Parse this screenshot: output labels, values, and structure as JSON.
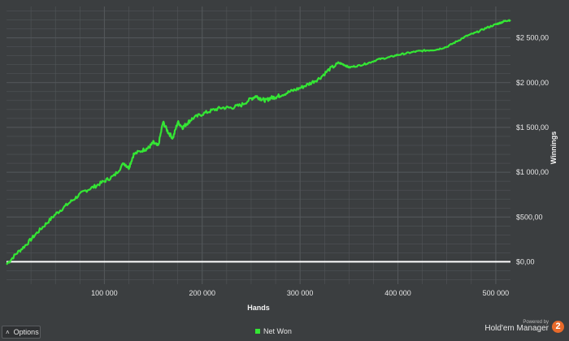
{
  "chart_data": {
    "type": "line",
    "xlabel": "Hands",
    "ylabel": "Winnings",
    "xlim": [
      0,
      515000
    ],
    "ylim": [
      -250,
      2850
    ],
    "x_ticks": [
      {
        "value": 100000,
        "label": "100 000"
      },
      {
        "value": 200000,
        "label": "200 000"
      },
      {
        "value": 300000,
        "label": "300 000"
      },
      {
        "value": 400000,
        "label": "400 000"
      },
      {
        "value": 500000,
        "label": "500 000"
      }
    ],
    "y_ticks": [
      {
        "value": 0,
        "label": "$0,00"
      },
      {
        "value": 500,
        "label": "$500,00"
      },
      {
        "value": 1000,
        "label": "$1 000,00"
      },
      {
        "value": 1500,
        "label": "$1 500,00"
      },
      {
        "value": 2000,
        "label": "$2 000,00"
      },
      {
        "value": 2500,
        "label": "$2 500,00"
      }
    ],
    "grid": true,
    "legend_position": "bottom-center",
    "colors": {
      "background": "#3b3e40",
      "grid": "#55595c",
      "series": "#34e634",
      "zero_line": "#ffffff"
    },
    "series": [
      {
        "name": "Net Won",
        "x": [
          0,
          10000,
          20000,
          30000,
          40000,
          50000,
          60000,
          70000,
          80000,
          90000,
          100000,
          110000,
          120000,
          125000,
          130000,
          140000,
          145000,
          150000,
          155000,
          160000,
          165000,
          170000,
          175000,
          180000,
          185000,
          190000,
          200000,
          210000,
          220000,
          230000,
          240000,
          250000,
          255000,
          260000,
          265000,
          270000,
          275000,
          280000,
          290000,
          300000,
          310000,
          320000,
          330000,
          340000,
          345000,
          350000,
          360000,
          370000,
          380000,
          390000,
          400000,
          410000,
          420000,
          430000,
          440000,
          450000,
          460000,
          470000,
          480000,
          490000,
          500000,
          505000,
          510000,
          515000
        ],
        "y": [
          -30,
          90,
          190,
          310,
          420,
          530,
          620,
          710,
          790,
          840,
          900,
          960,
          1100,
          1050,
          1200,
          1250,
          1270,
          1330,
          1290,
          1560,
          1450,
          1380,
          1560,
          1500,
          1550,
          1600,
          1650,
          1690,
          1720,
          1720,
          1750,
          1820,
          1850,
          1820,
          1800,
          1830,
          1840,
          1860,
          1900,
          1940,
          1990,
          2050,
          2150,
          2220,
          2200,
          2170,
          2190,
          2220,
          2260,
          2280,
          2310,
          2330,
          2350,
          2360,
          2370,
          2400,
          2460,
          2520,
          2560,
          2610,
          2650,
          2670,
          2690,
          2700
        ]
      }
    ]
  },
  "footer": {
    "options_label": "Options",
    "options_icon": "chevron-up-icon",
    "legend_label": "Net Won",
    "brand_powered": "Powered by",
    "brand_name": "Hold'em Manager",
    "brand_badge": "2"
  }
}
